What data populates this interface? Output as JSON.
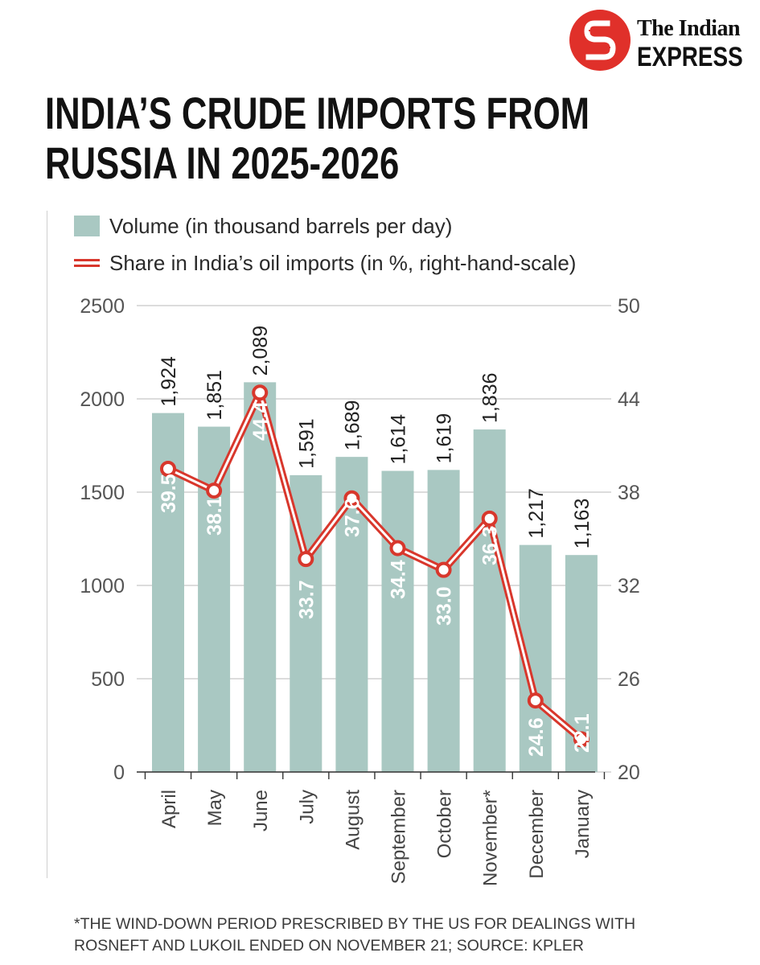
{
  "brand": {
    "line1": "The Indian",
    "line2": "EXPRESS",
    "logo_icon": "indian-express-logo"
  },
  "title_lines": [
    "INDIA’S CRUDE IMPORTS FROM",
    "RUSSIA IN 2025-2026"
  ],
  "legend": {
    "volume": "Volume (in thousand barrels per day)",
    "share": "Share in India’s oil imports (in %, right-hand-scale)"
  },
  "colors": {
    "bar": "#a9c8c2",
    "line": "#d8372c",
    "brand_red": "#e0302a"
  },
  "chart_data": {
    "type": "bar",
    "categories": [
      "April",
      "May",
      "June",
      "July",
      "August",
      "September",
      "October",
      "November*",
      "December",
      "January"
    ],
    "series": [
      {
        "name": "Volume (in thousand barrels per day)",
        "type": "bar",
        "axis": "left",
        "values": [
          1924,
          1851,
          2089,
          1591,
          1689,
          1614,
          1619,
          1836,
          1217,
          1163
        ],
        "labels": [
          "1,924",
          "1,851",
          "2,089",
          "1,591",
          "1,689",
          "1,614",
          "1,619",
          "1,836",
          "1,217",
          "1,163"
        ]
      },
      {
        "name": "Share in India’s oil imports (in %, right-hand-scale)",
        "type": "line",
        "axis": "right",
        "values": [
          39.5,
          38.1,
          44.4,
          33.7,
          37.6,
          34.4,
          33.0,
          36.3,
          24.6,
          22.1
        ],
        "labels": [
          "39.5",
          "38.1",
          "44.4",
          "33.7",
          "37.6",
          "34.4",
          "33.0",
          "36.3",
          "24.6",
          "22.1"
        ]
      }
    ],
    "y_left": {
      "ticks": [
        "0",
        "500",
        "1000",
        "1500",
        "2000",
        "2500"
      ],
      "range": [
        0,
        2500
      ]
    },
    "y_right": {
      "ticks": [
        "20",
        "26",
        "32",
        "38",
        "44",
        "50"
      ],
      "range": [
        20,
        50
      ]
    },
    "grid": true,
    "legend_position": "top-left"
  },
  "footnote": [
    "*THE WIND-DOWN PERIOD PRESCRIBED BY THE US FOR DEALINGS WITH",
    "ROSNEFT AND LUKOIL ENDED ON NOVEMBER 21; SOURCE: KPLER"
  ]
}
